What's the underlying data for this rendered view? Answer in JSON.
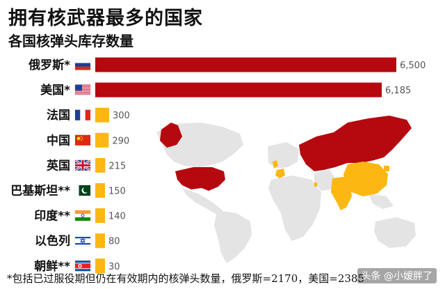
{
  "title": "拥有核武器最多的国家",
  "subtitle": "各国核弹头库存数量",
  "footnote": "*包括已过服役期但仍在有效期内的核弹头数量，俄罗斯=2170，美国=2385",
  "watermark": "头条 @小嫒胖了",
  "colors": {
    "major": "#b5080f",
    "minor": "#fcb712",
    "map_land": "#e4e4e4"
  },
  "chart_data": {
    "type": "bar",
    "orientation": "horizontal",
    "title": "拥有核武器最多的国家",
    "subtitle": "各国核弹头库存数量",
    "categories": [
      "俄罗斯*",
      "美国*",
      "法国",
      "中国",
      "英国",
      "巴基斯坦**",
      "印度**",
      "以色列",
      "朝鲜**"
    ],
    "values": [
      6500,
      6185,
      300,
      290,
      215,
      150,
      140,
      80,
      30
    ],
    "value_labels": [
      "6,500",
      "6,185",
      "300",
      "290",
      "215",
      "150",
      "140",
      "80",
      "30"
    ],
    "flags": [
      "russia-flag",
      "usa-flag",
      "france-flag",
      "china-flag",
      "uk-flag",
      "pakistan-flag",
      "india-flag",
      "israel-flag",
      "north-korea-flag"
    ],
    "xlim": [
      0,
      6500
    ],
    "grid": false
  }
}
